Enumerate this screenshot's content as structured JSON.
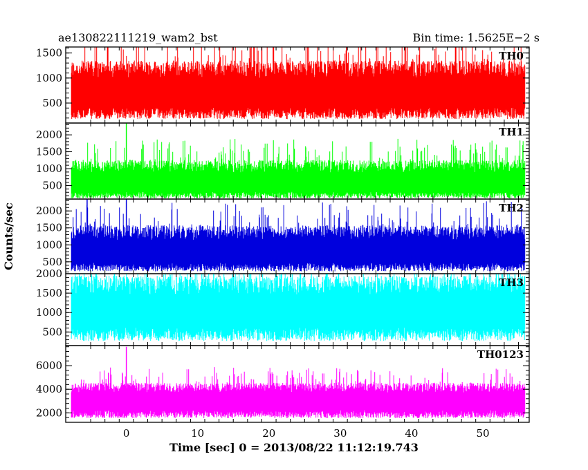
{
  "chart_data": {
    "type": "line",
    "title_left": "ae130822111219_wam2_bst",
    "title_right": "Bin time: 1.5625E−2 s",
    "xlabel": "Time [sec] 0 = 2013/08/22 11:12:19.743",
    "ylabel": "Counts/sec",
    "xlim": [
      -8.5,
      56.5
    ],
    "xticks": [
      0,
      10,
      20,
      30,
      40,
      50
    ],
    "data_range": [
      -7.7,
      55.9
    ],
    "bin_time": 0.015625,
    "panels": [
      {
        "name": "TH0",
        "color": "#ff0000",
        "ylim": [
          100,
          1620
        ],
        "yticks": [
          500,
          1000,
          1500
        ],
        "baseline": 700,
        "noise_low": 520,
        "noise_high": 650,
        "max": 1620,
        "spikes": []
      },
      {
        "name": "TH1",
        "color": "#00ff00",
        "ylim": [
          100,
          2350
        ],
        "yticks": [
          500,
          1000,
          1500,
          2000
        ],
        "baseline": 560,
        "noise_low": 440,
        "noise_high": 700,
        "max": 2350,
        "spikes": [
          {
            "x": 0.0,
            "y": 2350
          }
        ]
      },
      {
        "name": "TH2",
        "color": "#0000dd",
        "ylim": [
          150,
          2350
        ],
        "yticks": [
          500,
          1000,
          1500,
          2000
        ],
        "baseline": 780,
        "noise_low": 560,
        "noise_high": 800,
        "max": 2350,
        "spikes": [
          {
            "x": -5.5,
            "y": 2350
          },
          {
            "x": 0.0,
            "y": 2350
          }
        ]
      },
      {
        "name": "TH3",
        "color": "#00ffff",
        "ylim": [
          150,
          2000
        ],
        "yticks": [
          500,
          1000,
          1500,
          2000
        ],
        "baseline": 1050,
        "noise_low": 780,
        "noise_high": 900,
        "max": 2000,
        "spikes": []
      },
      {
        "name": "TH0123",
        "color": "#ff00ff",
        "ylim": [
          1200,
          7700
        ],
        "yticks": [
          2000,
          4000,
          6000
        ],
        "baseline": 3050,
        "noise_low": 1500,
        "noise_high": 1500,
        "max": 7700,
        "spikes": [
          {
            "x": 0.0,
            "y": 7600
          },
          {
            "x": -2.5,
            "y": 5400
          }
        ]
      }
    ]
  }
}
